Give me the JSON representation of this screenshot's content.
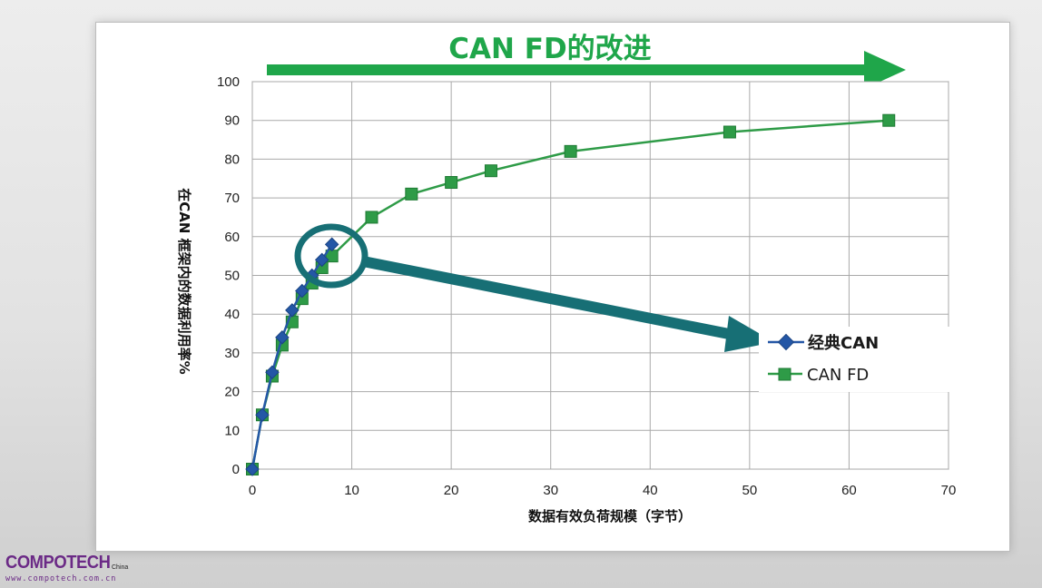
{
  "headline": "CAN FD的改进",
  "logo": {
    "name": "COMPOTECH",
    "superscript": "China",
    "url": "www.compotech.com.cn"
  },
  "colors": {
    "headline": "#1fa64a",
    "canfd": "#2e9b47",
    "classic_can": "#2457a6",
    "callout": "#176f75",
    "logo": "#6b2a86"
  },
  "chart_data": {
    "type": "line",
    "xlabel": "数据有效负荷规模（字节）",
    "ylabel": "在CAN 框架内的数据利用率%",
    "xlim": [
      0,
      70
    ],
    "ylim": [
      0,
      100
    ],
    "x_ticks": [
      0,
      10,
      20,
      30,
      40,
      50,
      60,
      70
    ],
    "y_ticks": [
      0,
      10,
      20,
      30,
      40,
      50,
      60,
      70,
      80,
      90,
      100
    ],
    "grid": true,
    "legend_position": "right",
    "series": [
      {
        "name": "经典CAN",
        "marker": "diamond",
        "color": "#2457a6",
        "x": [
          0,
          1,
          2,
          3,
          4,
          5,
          6,
          7,
          8
        ],
        "y": [
          0,
          14,
          25,
          34,
          41,
          46,
          50,
          54,
          58
        ]
      },
      {
        "name": "CAN FD",
        "marker": "square",
        "color": "#2e9b47",
        "x": [
          0,
          1,
          2,
          3,
          4,
          5,
          6,
          7,
          8,
          12,
          16,
          20,
          24,
          32,
          48,
          64
        ],
        "y": [
          0,
          14,
          24,
          32,
          38,
          44,
          48,
          52,
          55,
          65,
          71,
          74,
          77,
          82,
          87,
          90
        ]
      }
    ]
  }
}
